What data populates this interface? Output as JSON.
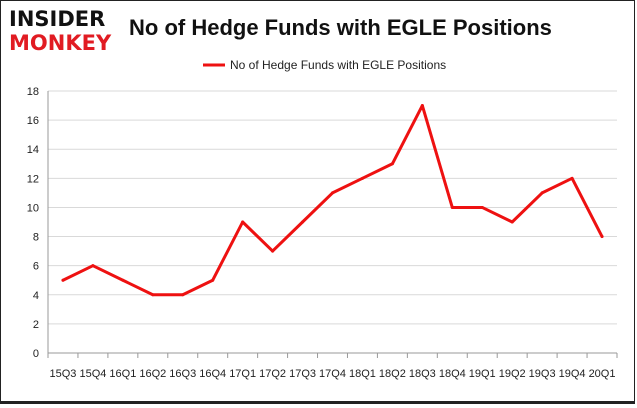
{
  "logo": {
    "line1": "INSIDER",
    "line2": "MONKEY"
  },
  "chart_data": {
    "type": "line",
    "title": "No of Hedge Funds with EGLE Positions",
    "xlabel": "",
    "ylabel": "",
    "categories": [
      "15Q3",
      "15Q4",
      "16Q1",
      "16Q2",
      "16Q3",
      "16Q4",
      "17Q1",
      "17Q2",
      "17Q3",
      "17Q4",
      "18Q1",
      "18Q2",
      "18Q3",
      "18Q4",
      "19Q1",
      "19Q2",
      "19Q3",
      "19Q4",
      "20Q1"
    ],
    "series": [
      {
        "name": "No of Hedge Funds with EGLE Positions",
        "values": [
          5,
          6,
          5,
          4,
          4,
          5,
          9,
          7,
          9,
          11,
          12,
          13,
          17,
          10,
          10,
          9,
          11,
          12,
          8
        ],
        "color": "#ee1111"
      }
    ],
    "ylim": [
      0,
      18
    ],
    "yticks": [
      0,
      2,
      4,
      6,
      8,
      10,
      12,
      14,
      16,
      18
    ],
    "grid": true,
    "legend": "top-center"
  }
}
